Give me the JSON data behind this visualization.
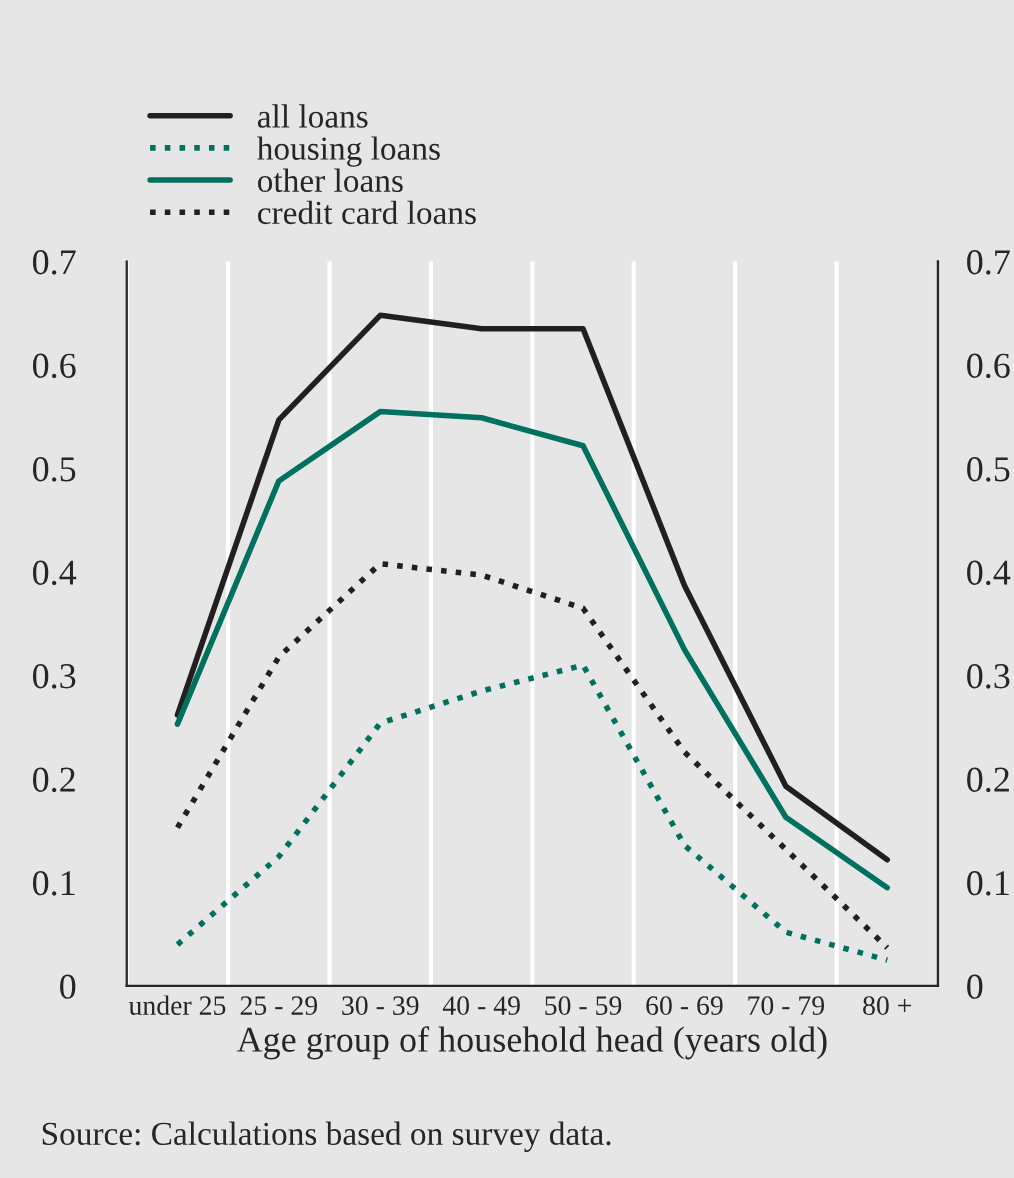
{
  "chart_data": {
    "type": "line",
    "xlabel": "Age group of household head (years old)",
    "categories": [
      "under 25",
      "25 - 29",
      "30 - 39",
      "40 - 49",
      "50 - 59",
      "60 - 69",
      "70 - 79",
      "80 +"
    ],
    "series": [
      {
        "name": "all loans",
        "color": "#231f20",
        "line_style": "solid",
        "values": [
          0.262,
          0.547,
          0.648,
          0.635,
          0.635,
          0.387,
          0.193,
          0.122
        ]
      },
      {
        "name": "housing loans",
        "color": "#00715e",
        "line_style": "dotted",
        "values": [
          0.04,
          0.125,
          0.254,
          0.285,
          0.31,
          0.136,
          0.052,
          0.025
        ]
      },
      {
        "name": "other loans",
        "color": "#00715e",
        "line_style": "solid",
        "values": [
          0.253,
          0.488,
          0.555,
          0.549,
          0.522,
          0.325,
          0.163,
          0.095
        ]
      },
      {
        "name": "credit card loans",
        "color": "#231f20",
        "line_style": "dotted",
        "values": [
          0.153,
          0.318,
          0.408,
          0.397,
          0.365,
          0.226,
          0.132,
          0.037
        ]
      }
    ],
    "ylim": [
      0,
      0.7
    ],
    "yticks": [
      0,
      0.1,
      0.2,
      0.3,
      0.4,
      0.5,
      0.6,
      0.7
    ],
    "y2lim": [
      0,
      0.7
    ],
    "y2ticks": [
      0,
      0.1,
      0.2,
      0.3,
      0.4,
      0.5,
      0.6,
      0.7
    ],
    "grid": "x",
    "legend": "top left",
    "marker": "none",
    "annotations": [
      "Source: Calculations based on survey data."
    ]
  }
}
